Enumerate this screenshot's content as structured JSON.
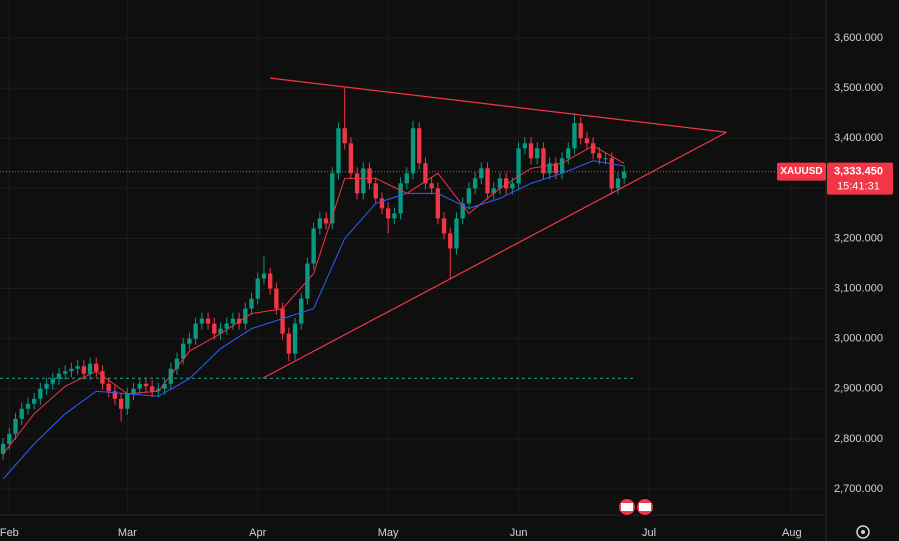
{
  "chart_data": {
    "type": "candlestick",
    "symbol": "XAUUSD",
    "last_price": {
      "value": 3333.45,
      "label": "3,333.450"
    },
    "countdown": "15:41:31",
    "up_color": "#089981",
    "down_color": "#f23645",
    "grid": true,
    "xlim": [
      -0.5,
      132.5
    ],
    "ylim": [
      2648,
      3676
    ],
    "xticks": [
      {
        "value": 1,
        "label": "Feb"
      },
      {
        "value": 20,
        "label": "Mar"
      },
      {
        "value": 41,
        "label": "Apr"
      },
      {
        "value": 62,
        "label": "May"
      },
      {
        "value": 83,
        "label": "Jun"
      },
      {
        "value": 104,
        "label": "Jul"
      },
      {
        "value": 127,
        "label": "Aug"
      }
    ],
    "yticks": [
      {
        "value": 2700,
        "label": "2,700.000"
      },
      {
        "value": 2800,
        "label": "2,800.000"
      },
      {
        "value": 2900,
        "label": "2,900.000"
      },
      {
        "value": 3000,
        "label": "3,000.000"
      },
      {
        "value": 3100,
        "label": "3,100.000"
      },
      {
        "value": 3200,
        "label": "3,200.000"
      },
      {
        "value": 3300,
        "label": "3,300.000"
      },
      {
        "value": 3400,
        "label": "3,400.000"
      },
      {
        "value": 3500,
        "label": "3,500.000"
      },
      {
        "value": 3600,
        "label": "3,600.000"
      }
    ],
    "x": [
      0,
      1,
      2,
      3,
      4,
      5,
      6,
      7,
      8,
      9,
      10,
      11,
      12,
      13,
      14,
      15,
      16,
      17,
      18,
      19,
      20,
      21,
      22,
      23,
      24,
      25,
      26,
      27,
      28,
      29,
      30,
      31,
      32,
      33,
      34,
      35,
      36,
      37,
      38,
      39,
      40,
      41,
      42,
      43,
      44,
      45,
      46,
      47,
      48,
      49,
      50,
      51,
      52,
      53,
      54,
      55,
      56,
      57,
      58,
      59,
      60,
      61,
      62,
      63,
      64,
      65,
      66,
      67,
      68,
      69,
      70,
      71,
      72,
      73,
      74,
      75,
      76,
      77,
      78,
      79,
      80,
      81,
      82,
      83,
      84,
      85,
      86,
      87,
      88,
      89,
      90,
      91,
      92,
      93,
      94,
      95,
      96,
      97,
      98,
      99,
      100
    ],
    "open": [
      2770,
      2790,
      2810,
      2840,
      2860,
      2870,
      2880,
      2900,
      2910,
      2920,
      2930,
      2935,
      2940,
      2945,
      2930,
      2950,
      2935,
      2910,
      2895,
      2880,
      2860,
      2890,
      2900,
      2910,
      2905,
      2895,
      2900,
      2910,
      2940,
      2960,
      2990,
      3000,
      3030,
      3040,
      3030,
      3010,
      3020,
      3030,
      3040,
      3030,
      3060,
      3080,
      3120,
      3130,
      3100,
      3060,
      3010,
      2970,
      3030,
      3080,
      3150,
      3220,
      3240,
      3230,
      3330,
      3420,
      3390,
      3330,
      3290,
      3340,
      3310,
      3280,
      3260,
      3240,
      3250,
      3310,
      3330,
      3420,
      3350,
      3310,
      3300,
      3240,
      3210,
      3180,
      3240,
      3270,
      3300,
      3320,
      3340,
      3290,
      3300,
      3320,
      3300,
      3310,
      3380,
      3390,
      3360,
      3380,
      3330,
      3350,
      3330,
      3360,
      3380,
      3430,
      3400,
      3390,
      3370,
      3360,
      3360,
      3300,
      3320
    ],
    "high": [
      2802,
      2822,
      2852,
      2872,
      2882,
      2892,
      2912,
      2922,
      2932,
      2942,
      2947,
      2952,
      2957,
      2957,
      2962,
      2962,
      2947,
      2922,
      2907,
      2892,
      2902,
      2912,
      2922,
      2922,
      2917,
      2912,
      2922,
      2952,
      2972,
      3002,
      3012,
      3042,
      3052,
      3052,
      3042,
      3032,
      3042,
      3052,
      3052,
      3072,
      3092,
      3132,
      3165,
      3142,
      3112,
      3072,
      3022,
      3042,
      3092,
      3162,
      3232,
      3252,
      3252,
      3342,
      3432,
      3500,
      3402,
      3342,
      3352,
      3352,
      3322,
      3292,
      3272,
      3262,
      3322,
      3342,
      3435,
      3432,
      3362,
      3322,
      3312,
      3252,
      3222,
      3252,
      3282,
      3312,
      3332,
      3352,
      3352,
      3312,
      3332,
      3332,
      3322,
      3392,
      3402,
      3402,
      3392,
      3392,
      3362,
      3362,
      3372,
      3392,
      3450,
      3442,
      3412,
      3402,
      3382,
      3372,
      3372,
      3332,
      3345
    ],
    "low": [
      2758,
      2778,
      2798,
      2828,
      2848,
      2858,
      2868,
      2888,
      2898,
      2908,
      2918,
      2923,
      2928,
      2918,
      2918,
      2923,
      2898,
      2883,
      2868,
      2835,
      2848,
      2878,
      2888,
      2893,
      2883,
      2883,
      2888,
      2898,
      2928,
      2948,
      2978,
      2988,
      3018,
      3018,
      2998,
      2998,
      3008,
      3018,
      3018,
      3018,
      3048,
      3068,
      3108,
      3088,
      3048,
      2998,
      2955,
      2958,
      3018,
      3068,
      3138,
      3208,
      3218,
      3218,
      3318,
      3378,
      3318,
      3278,
      3278,
      3298,
      3268,
      3248,
      3210,
      3228,
      3238,
      3298,
      3318,
      3338,
      3298,
      3288,
      3228,
      3198,
      3120,
      3168,
      3228,
      3258,
      3288,
      3308,
      3278,
      3278,
      3288,
      3288,
      3288,
      3298,
      3368,
      3348,
      3348,
      3318,
      3318,
      3318,
      3318,
      3348,
      3368,
      3388,
      3378,
      3358,
      3348,
      3348,
      3288,
      3288,
      3308
    ],
    "close": [
      2790,
      2810,
      2840,
      2860,
      2870,
      2880,
      2900,
      2910,
      2920,
      2930,
      2935,
      2940,
      2945,
      2930,
      2950,
      2935,
      2910,
      2895,
      2880,
      2860,
      2890,
      2900,
      2910,
      2905,
      2895,
      2900,
      2910,
      2940,
      2960,
      2990,
      3000,
      3030,
      3040,
      3030,
      3010,
      3020,
      3030,
      3040,
      3030,
      3060,
      3080,
      3120,
      3130,
      3100,
      3060,
      3010,
      2970,
      3030,
      3080,
      3150,
      3220,
      3240,
      3230,
      3330,
      3420,
      3390,
      3330,
      3290,
      3340,
      3310,
      3280,
      3260,
      3240,
      3250,
      3310,
      3330,
      3420,
      3350,
      3310,
      3300,
      3240,
      3210,
      3180,
      3240,
      3270,
      3300,
      3320,
      3340,
      3290,
      3300,
      3320,
      3300,
      3310,
      3380,
      3390,
      3360,
      3380,
      3330,
      3350,
      3330,
      3360,
      3380,
      3430,
      3400,
      3390,
      3370,
      3360,
      3360,
      3300,
      3320,
      3333.45
    ],
    "series": [
      {
        "color": "#f23645",
        "x": [
          0,
          5,
          10,
          15,
          20,
          25,
          30,
          35,
          40,
          45,
          50,
          55,
          60,
          65,
          70,
          75,
          80,
          85,
          90,
          95,
          100
        ],
        "values": [
          2770,
          2850,
          2905,
          2935,
          2890,
          2895,
          2975,
          3010,
          3050,
          3060,
          3130,
          3320,
          3320,
          3290,
          3330,
          3250,
          3300,
          3340,
          3350,
          3385,
          3350
        ]
      },
      {
        "color": "#2962ff",
        "x": [
          0,
          5,
          10,
          15,
          20,
          25,
          30,
          35,
          40,
          45,
          50,
          55,
          60,
          65,
          70,
          75,
          80,
          85,
          90,
          95,
          100
        ],
        "values": [
          2720,
          2790,
          2850,
          2895,
          2890,
          2885,
          2920,
          2980,
          3020,
          3040,
          3060,
          3200,
          3270,
          3290,
          3290,
          3260,
          3280,
          3310,
          3330,
          3355,
          3345
        ]
      }
    ],
    "trendlines": [
      {
        "color": "#f23645",
        "x": [
          43,
          116.5
        ],
        "y": [
          3520,
          3412
        ]
      },
      {
        "color": "#f23645",
        "x": [
          41.8,
          116.5
        ],
        "y": [
          2921,
          3412
        ]
      }
    ],
    "hline": {
      "color": "#26a69a",
      "y": 2921,
      "x": [
        -0.5,
        101.5
      ]
    }
  }
}
